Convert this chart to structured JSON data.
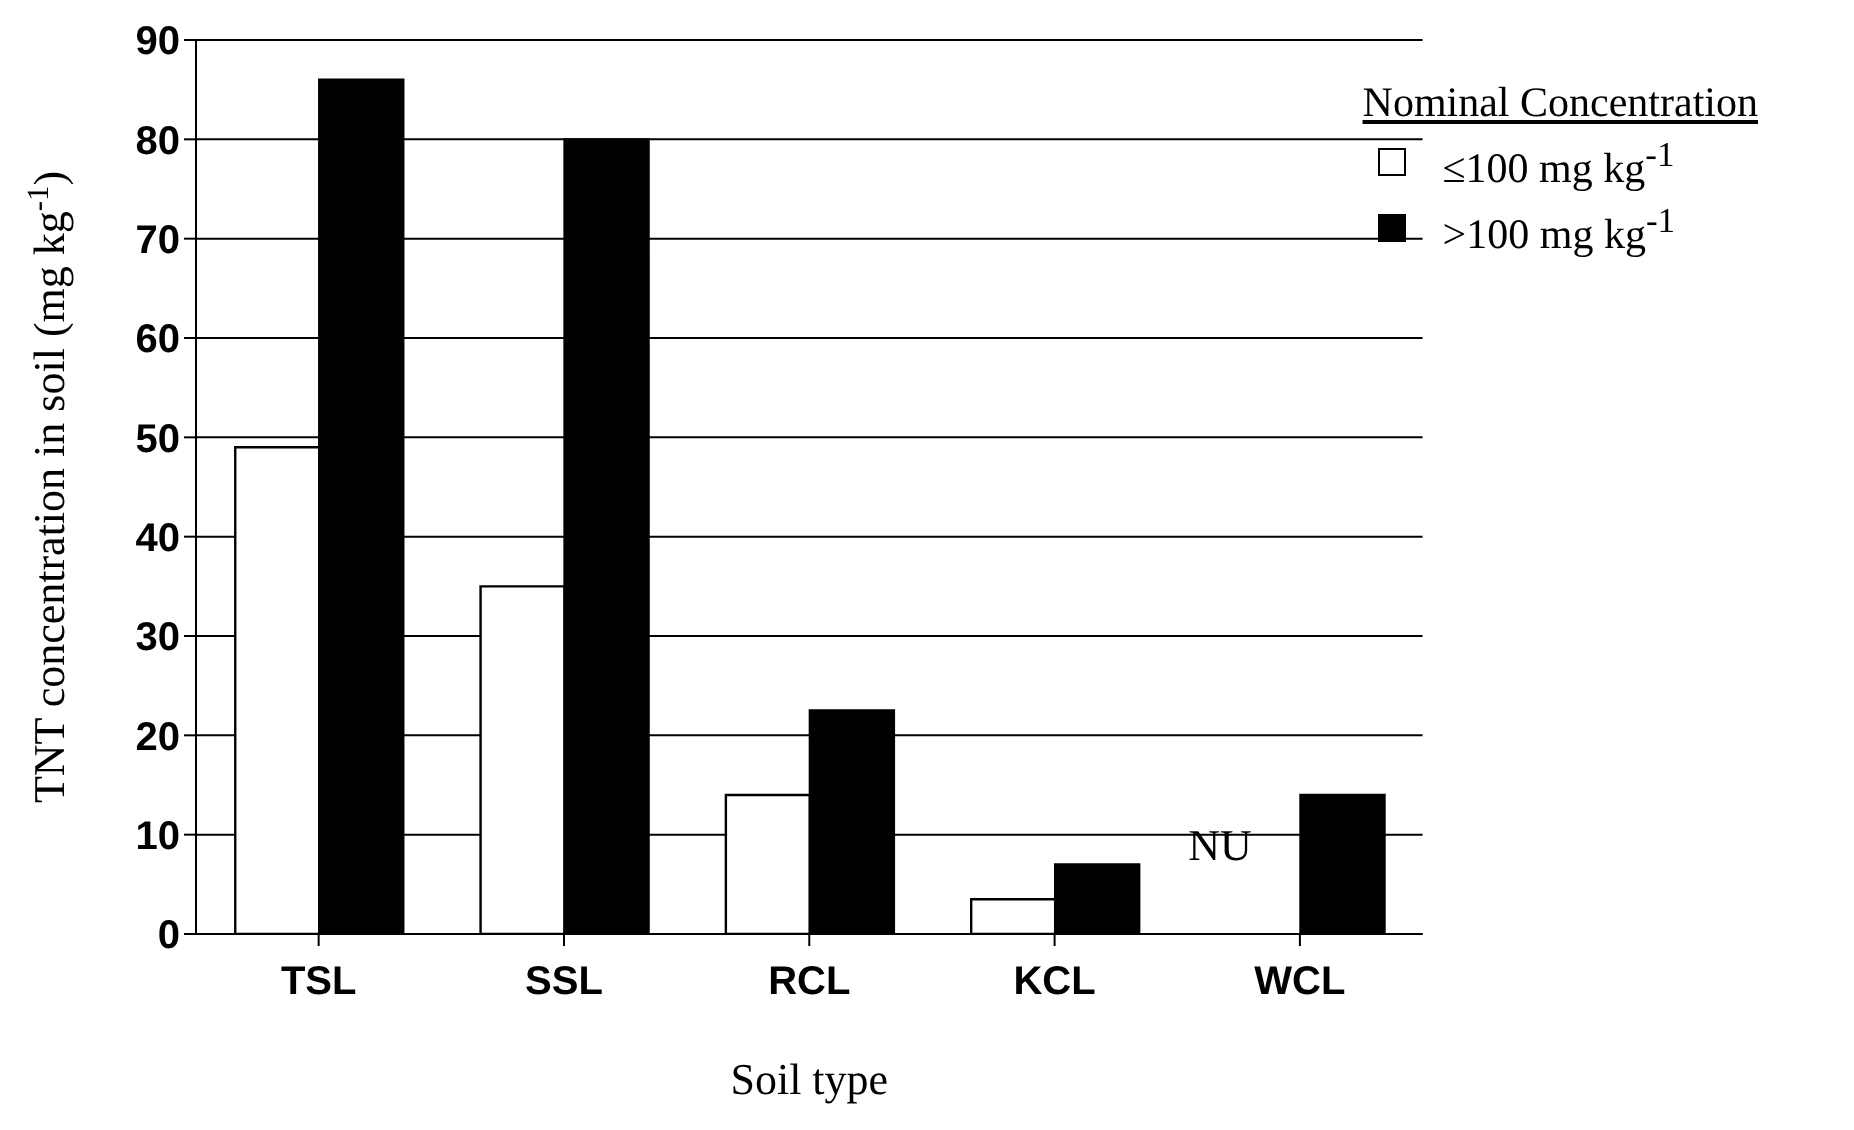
{
  "chart_data": {
    "type": "bar",
    "xlabel": "Soil type",
    "ylabel": "TNT concentration in soil (mg kg$^{-1}$)",
    "legend_title": "Nominal Concentration",
    "categories": [
      "TSL",
      "SSL",
      "RCL",
      "KCL",
      "WCL"
    ],
    "series": [
      {
        "name": "≤100 mg kg$^{-1}$",
        "color": "#ffffff",
        "values": [
          49,
          35,
          14,
          3.5,
          null
        ]
      },
      {
        "name": ">100 mg kg$^{-1}$",
        "color": "#000000",
        "values": [
          86,
          80,
          22.5,
          7,
          14
        ]
      }
    ],
    "ylim": [
      0,
      90
    ],
    "yticks": [
      0,
      10,
      20,
      30,
      40,
      50,
      60,
      70,
      80,
      90
    ],
    "grid": "y",
    "legend": "top right",
    "annotations": [
      {
        "text": "NU",
        "x": "WCL",
        "y": 9
      }
    ]
  }
}
